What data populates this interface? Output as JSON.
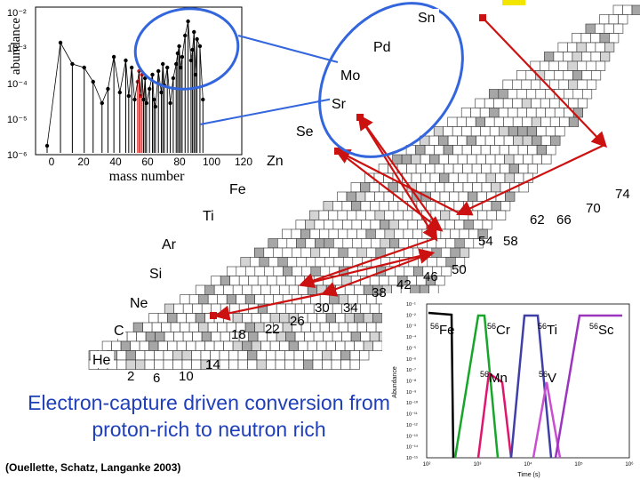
{
  "top_chart": {
    "ylabel": "abundance",
    "xlabel": "mass number",
    "x_ticks": [
      "0",
      "20",
      "40",
      "60",
      "80",
      "100",
      "120"
    ],
    "y_ticks": [
      "10⁻²",
      "10⁻³",
      "10⁻⁴",
      "10⁻⁵",
      "10⁻⁶"
    ]
  },
  "chart_data": {
    "type": "scatter",
    "title": "",
    "xlabel": "mass number",
    "ylabel": "abundance",
    "xlim": [
      0,
      130
    ],
    "ylim_log10": [
      -6,
      -2
    ],
    "series": [
      {
        "x": [
          3,
          12,
          20,
          28,
          34,
          40,
          44,
          48,
          52,
          56,
          58,
          60,
          62,
          64,
          65,
          66,
          67,
          68,
          69,
          70,
          72,
          74,
          75,
          76,
          78,
          80,
          81,
          82,
          84,
          86,
          88,
          90,
          91,
          92,
          93,
          94,
          96,
          98,
          100,
          101,
          102,
          103,
          104,
          106,
          108
        ],
        "log10_y": [
          -5.8,
          -2.9,
          -3.5,
          -3.6,
          -4.0,
          -4.6,
          -4.2,
          -3.3,
          -4.3,
          -3.4,
          -4.4,
          -3.6,
          -4.5,
          -4.0,
          -3.7,
          -4.4,
          -3.8,
          -4.5,
          -3.9,
          -4.6,
          -4.2,
          -3.8,
          -4.5,
          -4.7,
          -3.7,
          -4.3,
          -3.5,
          -4.1,
          -3.6,
          -4.6,
          -3.9,
          -3.5,
          -3.2,
          -3.0,
          -3.6,
          -3.3,
          -2.7,
          -2.3,
          -3.4,
          -3.1,
          -2.6,
          -3.8,
          -2.8,
          -3.0,
          -4.5
        ]
      }
    ]
  },
  "chart_labels": {
    "elements": [
      {
        "label": "Sn"
      },
      {
        "label": "Pd"
      },
      {
        "label": "Mo"
      },
      {
        "label": "Sr"
      },
      {
        "label": "Se"
      },
      {
        "label": "Zn"
      },
      {
        "label": "Fe"
      },
      {
        "label": "Ti"
      },
      {
        "label": "Ar"
      },
      {
        "label": "Si"
      },
      {
        "label": "Ne"
      },
      {
        "label": "C"
      },
      {
        "label": "He"
      }
    ],
    "neutron_numbers": [
      "2",
      "6",
      "10",
      "14",
      "18",
      "22",
      "26",
      "30",
      "34",
      "38",
      "42",
      "46",
      "50",
      "54",
      "58",
      "62",
      "66",
      "70",
      "74"
    ]
  },
  "inset_chart": {
    "ylabel": "Abundance",
    "xlabel": "Time (s)",
    "y_ticks": [
      "10⁻¹",
      "10⁻²",
      "10⁻³",
      "10⁻⁴",
      "10⁻⁵",
      "10⁻⁶",
      "10⁻⁷",
      "10⁻⁸",
      "10⁻⁹",
      "10⁻¹⁰",
      "10⁻¹¹",
      "10⁻¹²",
      "10⁻¹³",
      "10⁻¹⁴",
      "10⁻¹⁵"
    ],
    "x_ticks": [
      "10²",
      "10³",
      "10⁴",
      "10⁵",
      "10⁶"
    ],
    "species": [
      {
        "mass": "56",
        "sym": "Fe",
        "color": "#000000"
      },
      {
        "mass": "56",
        "sym": "Cr",
        "color": "#17a52a"
      },
      {
        "mass": "56",
        "sym": "Mn",
        "color": "#e0156d"
      },
      {
        "mass": "56",
        "sym": "V",
        "color": "#c84fd0"
      },
      {
        "mass": "56",
        "sym": "Ti",
        "color": "#3f3fa8"
      },
      {
        "mass": "56",
        "sym": "Sc",
        "color": "#9b35c0"
      }
    ]
  },
  "title": "Electron-capture driven conversion from proton-rich to neutron rich",
  "citation": "(Ouellette, Schatz, Langanke 2003)",
  "colors": {
    "highlight": "#3366dd",
    "arrow": "#cc1111",
    "grid_line": "#000000",
    "grid_gray": "#a6a6a6",
    "grid_light": "#d4d4d4",
    "title": "#1f3fb8"
  }
}
